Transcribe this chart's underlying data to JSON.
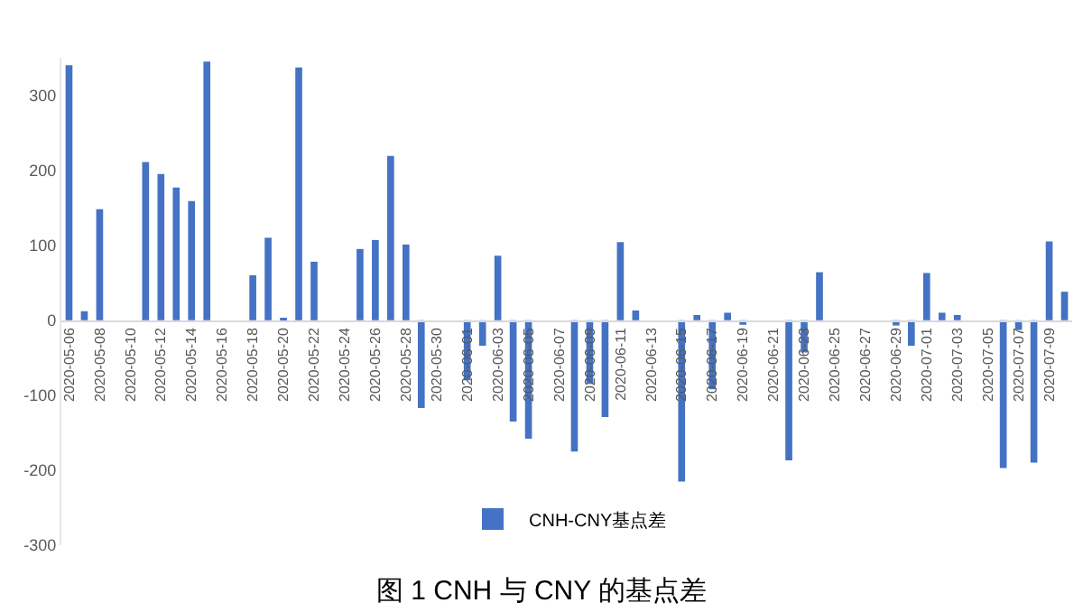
{
  "chart_data": {
    "type": "bar",
    "title": "图 1 CNH 与 CNY 的基点差",
    "categories": [
      "2020-05-06",
      null,
      "2020-05-08",
      null,
      "2020-05-10",
      null,
      "2020-05-12",
      null,
      "2020-05-14",
      null,
      "2020-05-16",
      null,
      "2020-05-18",
      null,
      "2020-05-20",
      null,
      "2020-05-22",
      null,
      "2020-05-24",
      null,
      "2020-05-26",
      null,
      "2020-05-28",
      null,
      "2020-05-30",
      null,
      "2020-06-01",
      null,
      "2020-06-03",
      null,
      "2020-06-05",
      null,
      "2020-06-07",
      null,
      "2020-06-09",
      null,
      "2020-06-11",
      null,
      "2020-06-13",
      null,
      "2020-06-15",
      null,
      "2020-06-17",
      null,
      "2020-06-19",
      null,
      "2020-06-21",
      null,
      "2020-06-23",
      null,
      "2020-06-25",
      null,
      "2020-06-27",
      null,
      "2020-06-29",
      null,
      "2020-07-01",
      null,
      "2020-07-03",
      null,
      "2020-07-05",
      null,
      "2020-07-07",
      null,
      "2020-07-09",
      null
    ],
    "series": [
      {
        "name": "CNH-CNY基点差",
        "color": "#4472c4",
        "values": [
          340,
          12,
          148,
          null,
          null,
          211,
          195,
          177,
          159,
          345,
          null,
          null,
          60,
          110,
          1,
          337,
          78,
          null,
          null,
          95,
          107,
          219,
          101,
          -117,
          null,
          null,
          -80,
          -34,
          86,
          -135,
          -158,
          null,
          null,
          -175,
          -85,
          -129,
          104,
          13,
          null,
          null,
          -215,
          7,
          -92,
          10,
          -6,
          null,
          null,
          -187,
          -43,
          64,
          null,
          null,
          null,
          null,
          -7,
          -34,
          63,
          10,
          7,
          null,
          null,
          -197,
          -13,
          -190,
          105,
          38
        ]
      }
    ],
    "ylim": [
      -300,
      350
    ],
    "yticks": [
      -300,
      -200,
      -100,
      0,
      100,
      200,
      300
    ],
    "grid": false,
    "legend": "bottom"
  }
}
